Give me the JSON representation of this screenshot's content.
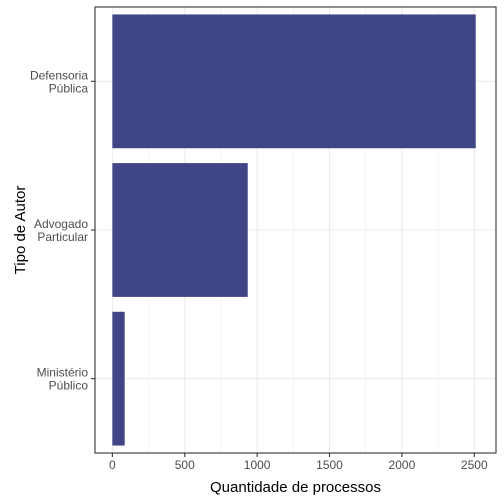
{
  "chart_data": {
    "type": "bar",
    "orientation": "horizontal",
    "categories": [
      [
        "Defensoria",
        "Pública"
      ],
      [
        "Advogado",
        "Particular"
      ],
      [
        "Ministério",
        "Público"
      ]
    ],
    "values": [
      2510,
      935,
      85
    ],
    "xlabel": "Quantidade de processos",
    "ylabel": "Tipo de Autor",
    "xlim": [
      -120,
      2650
    ],
    "x_ticks": [
      0,
      500,
      1000,
      1500,
      2000,
      2500
    ],
    "x_tick_labels": [
      "0",
      "500",
      "1000",
      "1500",
      "2000",
      "2500"
    ],
    "grid": true,
    "legend": "none",
    "colors": {
      "bar": "#404586",
      "grid": "#ebebeb",
      "panel_border": "#333333",
      "tick_text": "#4d4d4d"
    }
  }
}
